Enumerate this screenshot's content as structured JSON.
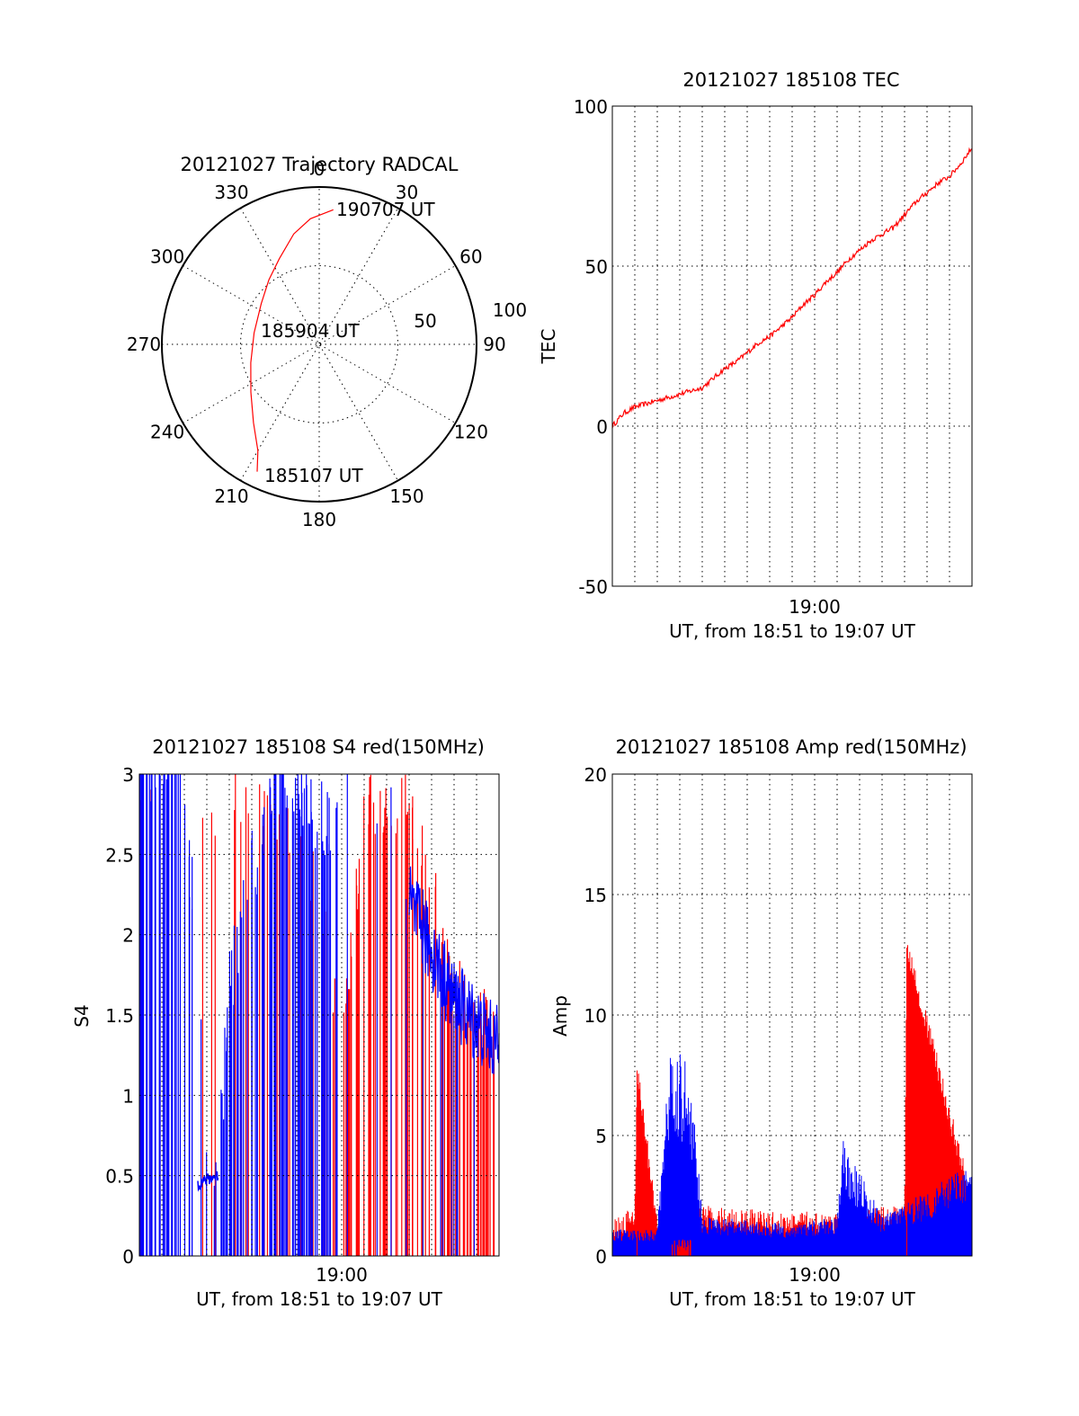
{
  "colors": {
    "red": "#ff0000",
    "blue": "#0000ff",
    "axis": "#000000"
  },
  "chart_data": [
    {
      "type": "polar",
      "title": "20121027 Trajectory RADCAL",
      "angle_labels": [
        "0",
        "30",
        "60",
        "90",
        "120",
        "150",
        "180",
        "210",
        "240",
        "270",
        "300",
        "330"
      ],
      "radial_labels": [
        "50",
        "100"
      ],
      "rlim": [
        0,
        100
      ],
      "annotations": [
        "190707 UT",
        "185904 UT",
        "185107 UT"
      ],
      "series": [
        {
          "color": "red",
          "points": [
            {
              "az": 206,
              "r": 90
            },
            {
              "az": 210,
              "r": 78
            },
            {
              "az": 220,
              "r": 65
            },
            {
              "az": 235,
              "r": 53
            },
            {
              "az": 255,
              "r": 45
            },
            {
              "az": 280,
              "r": 42
            },
            {
              "az": 305,
              "r": 45
            },
            {
              "az": 322,
              "r": 52
            },
            {
              "az": 335,
              "r": 60
            },
            {
              "az": 347,
              "r": 72
            },
            {
              "az": 356,
              "r": 80
            },
            {
              "az": 6,
              "r": 86
            }
          ]
        }
      ]
    },
    {
      "type": "line",
      "title": "20121027 185108 TEC",
      "ylabel": "TEC",
      "xlabel": "UT, from 18:51 to 19:07 UT",
      "xtick_label": "19:00",
      "yticks": [
        "100",
        "50",
        "0",
        "-50"
      ],
      "ylim": [
        -50,
        100
      ],
      "xlim_minutes": [
        0,
        16
      ],
      "grid": true,
      "series": [
        {
          "color": "red",
          "x": [
            0,
            0.5,
            1,
            1.5,
            2,
            2.5,
            3,
            3.5,
            4,
            4.5,
            5,
            5.5,
            6,
            6.5,
            7,
            7.5,
            8,
            8.5,
            9,
            9.5,
            10,
            10.5,
            11,
            11.5,
            12,
            12.5,
            13,
            13.5,
            14,
            14.5,
            15,
            15.5,
            16
          ],
          "y": [
            0,
            4,
            6,
            7,
            8,
            9,
            10,
            11,
            12,
            15,
            18,
            20,
            23,
            26,
            28,
            31,
            34,
            38,
            41,
            45,
            48,
            52,
            55,
            58,
            60,
            62,
            66,
            70,
            73,
            76,
            78,
            82,
            87
          ]
        }
      ]
    },
    {
      "type": "line",
      "title": "20121027 185108 S4 red(150MHz)",
      "ylabel": "S4",
      "xlabel": "UT, from 18:51 to 19:07 UT",
      "xtick_label": "19:00",
      "yticks": [
        "3",
        "2.5",
        "2",
        "1.5",
        "1",
        "0.5",
        "0"
      ],
      "ylim": [
        0,
        3
      ],
      "xlim_minutes": [
        0,
        16
      ],
      "grid": true,
      "series": [
        {
          "color": "red",
          "density": "dense after 19:00",
          "x": [
            0,
            2,
            4,
            6,
            8,
            9,
            10,
            12,
            14,
            16
          ],
          "y": [
            3,
            2.7,
            3,
            3,
            2.5,
            1.5,
            3,
            3,
            2,
            1.5
          ]
        },
        {
          "color": "blue",
          "density": "dense before 19:00",
          "x": [
            0,
            2,
            3,
            3.5,
            4,
            6,
            8,
            10,
            12,
            14,
            16
          ],
          "y": [
            3,
            3,
            0.45,
            0.5,
            1.5,
            3,
            2.6,
            3,
            2.2,
            1.6,
            1.3
          ]
        }
      ]
    },
    {
      "type": "line",
      "title": "20121027 185108 Amp red(150MHz)",
      "ylabel": "Amp",
      "xlabel": "UT, from 18:51 to 19:07 UT",
      "xtick_label": "19:00",
      "yticks": [
        "20",
        "15",
        "10",
        "5",
        "0"
      ],
      "ylim": [
        0,
        20
      ],
      "xlim_minutes": [
        0,
        16
      ],
      "grid": true,
      "series": [
        {
          "color": "red",
          "x": [
            0,
            1,
            1.1,
            2,
            3,
            4,
            8,
            13,
            13.1,
            16
          ],
          "y": [
            1,
            1.5,
            7.7,
            1,
            0.4,
            1.5,
            1.2,
            1.5,
            12.8,
            2
          ]
        },
        {
          "color": "blue",
          "x": [
            0,
            2,
            2.5,
            3,
            3.5,
            4,
            8,
            10,
            10.2,
            12,
            16
          ],
          "y": [
            1,
            1,
            7.5,
            8,
            7,
            1.5,
            1.2,
            1.5,
            4.5,
            1.5,
            3.5
          ]
        }
      ]
    }
  ]
}
